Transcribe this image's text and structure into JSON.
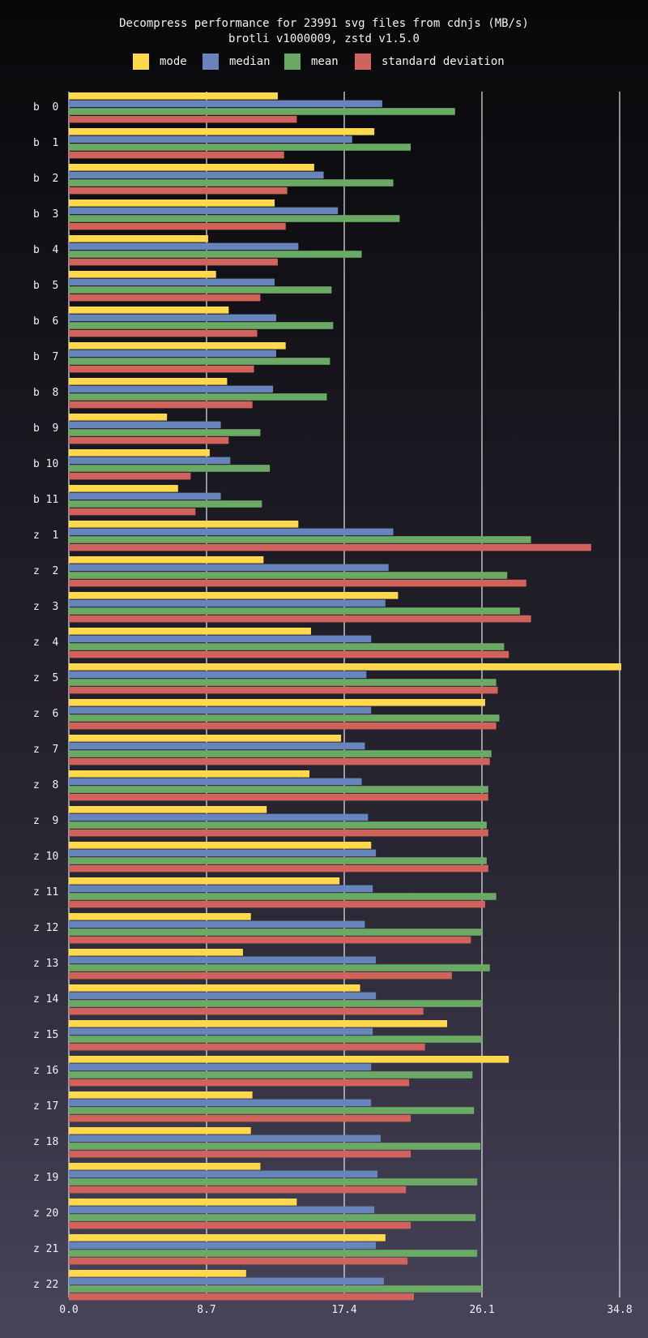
{
  "chart_data": {
    "type": "bar",
    "orientation": "horizontal",
    "title": "Decompress performance for 23991 svg files from cdnjs (MB/s)",
    "subtitle": "brotli v1000009, zstd v1.5.0",
    "xlabel": "",
    "ylabel": "",
    "xlim": [
      0,
      34.8
    ],
    "xticks": [
      "0.0",
      "8.7",
      "17.4",
      "26.1",
      "34.8"
    ],
    "grid": true,
    "legend_position": "top",
    "categories": [
      "b  0",
      "b  1",
      "b  2",
      "b  3",
      "b  4",
      "b  5",
      "b  6",
      "b  7",
      "b  8",
      "b  9",
      "b 10",
      "b 11",
      "z  1",
      "z  2",
      "z  3",
      "z  4",
      "z  5",
      "z  6",
      "z  7",
      "z  8",
      "z  9",
      "z 10",
      "z 11",
      "z 12",
      "z 13",
      "z 14",
      "z 15",
      "z 16",
      "z 17",
      "z 18",
      "z 19",
      "z 20",
      "z 21",
      "z 22"
    ],
    "series": [
      {
        "name": "mode",
        "color": "#ffd84d",
        "values": [
          13.2,
          19.3,
          15.5,
          13.0,
          8.8,
          9.3,
          10.1,
          13.7,
          10.0,
          6.2,
          8.9,
          6.9,
          14.5,
          12.3,
          20.8,
          15.3,
          34.9,
          26.3,
          17.2,
          15.2,
          12.5,
          19.1,
          17.1,
          11.5,
          11.0,
          18.4,
          23.9,
          27.8,
          11.6,
          11.5,
          12.1,
          14.4,
          20.0,
          11.2
        ]
      },
      {
        "name": "median",
        "color": "#6885bb",
        "values": [
          19.8,
          17.9,
          16.1,
          17.0,
          14.5,
          13.0,
          13.1,
          13.1,
          12.9,
          9.6,
          10.2,
          9.6,
          20.5,
          20.2,
          20.0,
          19.1,
          18.8,
          19.1,
          18.7,
          18.5,
          18.9,
          19.4,
          19.2,
          18.7,
          19.4,
          19.4,
          19.2,
          19.1,
          19.1,
          19.7,
          19.5,
          19.3,
          19.4,
          19.9
        ]
      },
      {
        "name": "mean",
        "color": "#6aaa64",
        "values": [
          24.4,
          21.6,
          20.5,
          20.9,
          18.5,
          16.6,
          16.7,
          16.5,
          16.3,
          12.1,
          12.7,
          12.2,
          29.2,
          27.7,
          28.5,
          27.5,
          27.0,
          27.2,
          26.7,
          26.5,
          26.4,
          26.4,
          27.0,
          26.1,
          26.6,
          26.1,
          26.1,
          25.5,
          25.6,
          26.0,
          25.8,
          25.7,
          25.8,
          26.1
        ]
      },
      {
        "name": "standard deviation",
        "color": "#d1635c",
        "values": [
          14.4,
          13.6,
          13.8,
          13.7,
          13.2,
          12.1,
          11.9,
          11.7,
          11.6,
          10.1,
          7.7,
          8.0,
          33.0,
          28.9,
          29.2,
          27.8,
          27.1,
          27.0,
          26.6,
          26.5,
          26.5,
          26.5,
          26.3,
          25.4,
          24.2,
          22.4,
          22.5,
          21.5,
          21.6,
          21.6,
          21.3,
          21.6,
          21.4,
          21.8
        ]
      }
    ]
  }
}
